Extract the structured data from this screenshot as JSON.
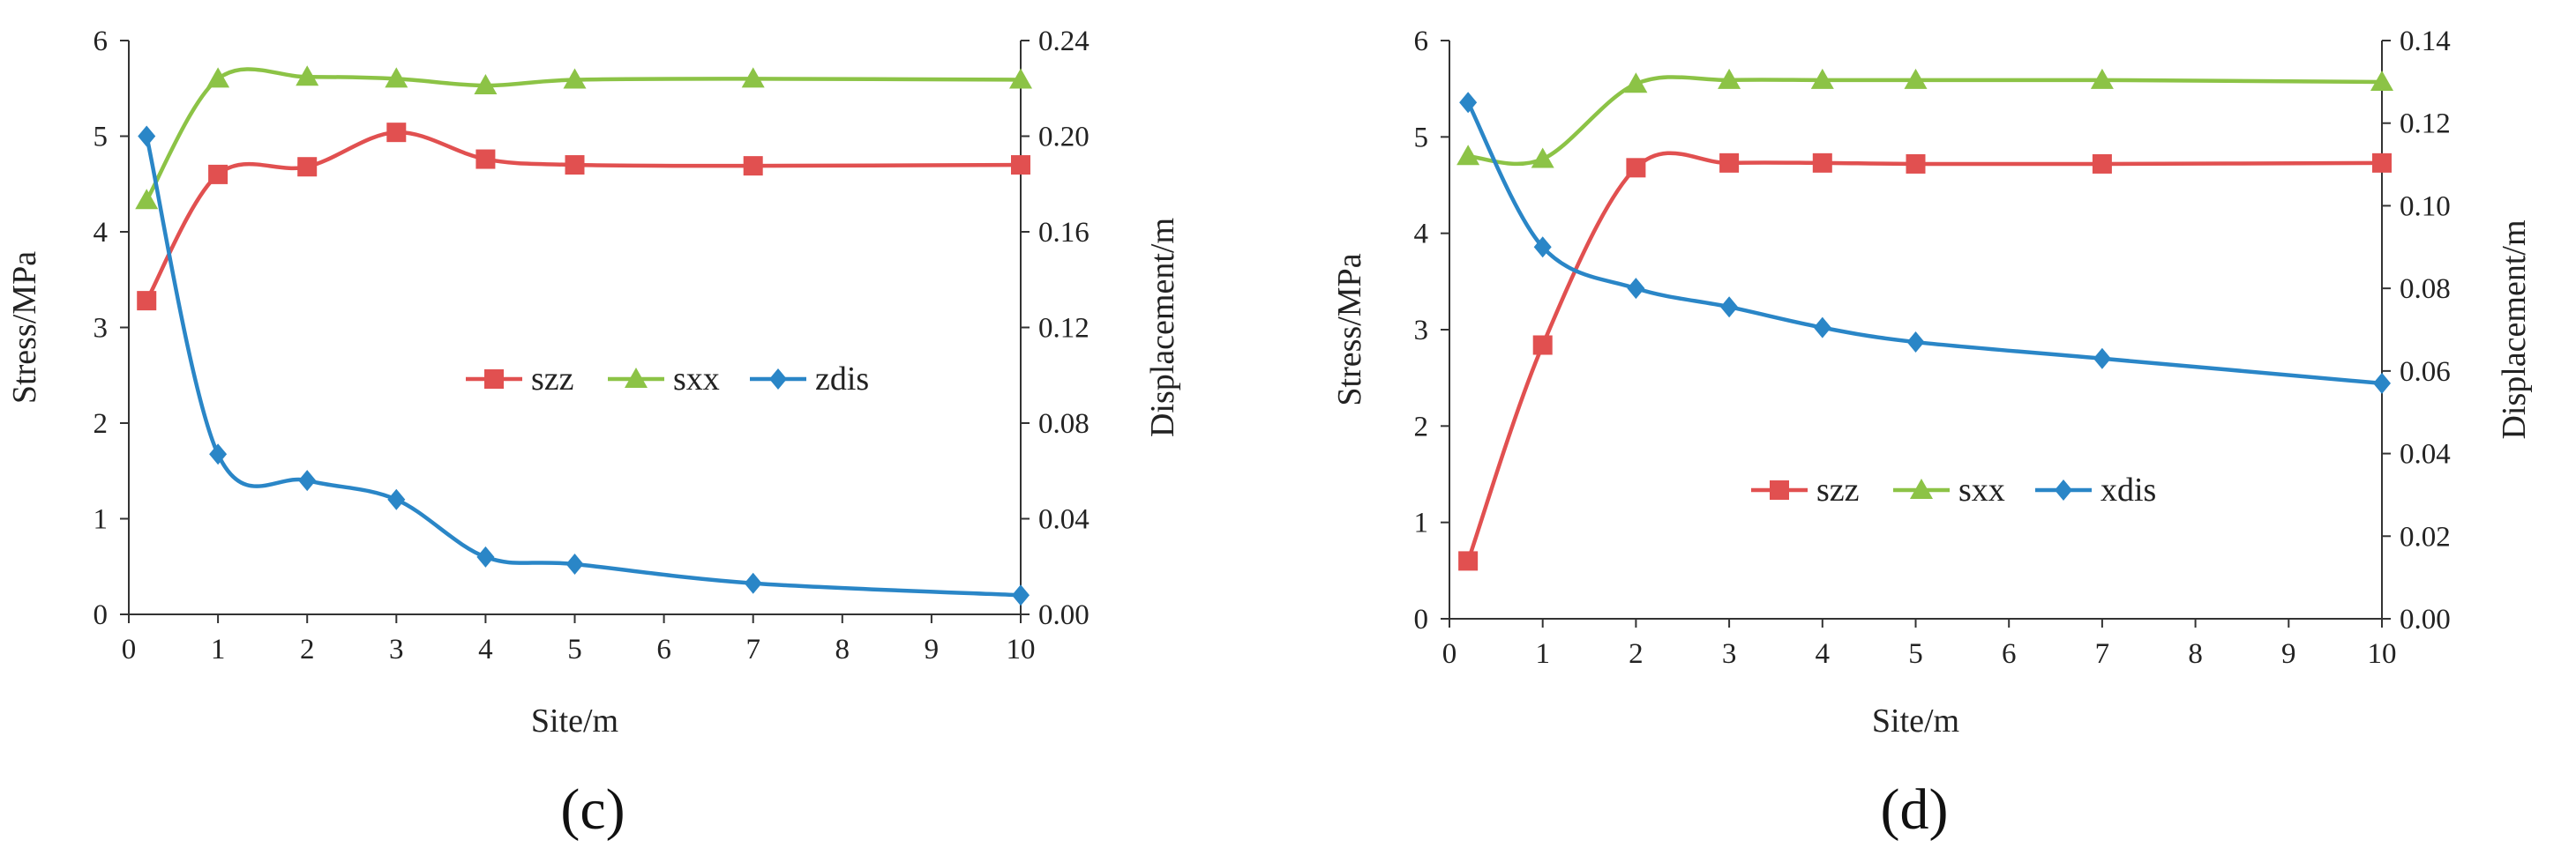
{
  "colors": {
    "szz": "#e15050",
    "sxx": "#8cc346",
    "dis": "#2a86c7"
  },
  "chart_data": [
    {
      "type": "line",
      "panel_label": "(c)",
      "xlabel": "Site/m",
      "ylabel_left": "Stress/MPa",
      "ylabel_right": "Displacement/m",
      "xlim": [
        0,
        10
      ],
      "xticks": [
        0,
        1,
        2,
        3,
        4,
        5,
        6,
        7,
        8,
        9,
        10
      ],
      "ylim_left": [
        0,
        6
      ],
      "yticks_left": [
        0,
        1,
        2,
        3,
        4,
        5,
        6
      ],
      "ylim_right": [
        0,
        0.24
      ],
      "yticks_right": [
        "0.00",
        "0.04",
        "0.08",
        "0.12",
        "0.16",
        "0.20",
        "0.24"
      ],
      "x": [
        0.2,
        1,
        2,
        3,
        4,
        5,
        7,
        10
      ],
      "series": [
        {
          "name": "szz",
          "axis": "left",
          "marker": "square",
          "color": "#e15050",
          "values": [
            3.28,
            4.6,
            4.68,
            5.04,
            4.76,
            4.7,
            4.69,
            4.7
          ]
        },
        {
          "name": "sxx",
          "axis": "left",
          "marker": "triangle",
          "color": "#8cc346",
          "values": [
            4.33,
            5.6,
            5.62,
            5.6,
            5.53,
            5.59,
            5.6,
            5.59
          ]
        },
        {
          "name": "zdis",
          "axis": "right",
          "marker": "diamond",
          "color": "#2a86c7",
          "values": [
            0.2,
            0.067,
            0.056,
            0.048,
            0.024,
            0.021,
            0.013,
            0.008
          ]
        }
      ],
      "legend": [
        "szz",
        "sxx",
        "zdis"
      ],
      "legend_position": "center-right"
    },
    {
      "type": "line",
      "panel_label": "(d)",
      "xlabel": "Site/m",
      "ylabel_left": "Stress/MPa",
      "ylabel_right": "Displacement/m",
      "xlim": [
        0,
        10
      ],
      "xticks": [
        0,
        1,
        2,
        3,
        4,
        5,
        6,
        7,
        8,
        9,
        10
      ],
      "ylim_left": [
        0,
        6
      ],
      "yticks_left": [
        0,
        1,
        2,
        3,
        4,
        5,
        6
      ],
      "ylim_right": [
        0,
        0.14
      ],
      "yticks_right": [
        "0.00",
        "0.02",
        "0.04",
        "0.06",
        "0.08",
        "0.10",
        "0.12",
        "0.14"
      ],
      "x": [
        0.2,
        1,
        2,
        3,
        4,
        5,
        7,
        10
      ],
      "series": [
        {
          "name": "szz",
          "axis": "left",
          "marker": "square",
          "color": "#e15050",
          "values": [
            0.6,
            2.84,
            4.68,
            4.73,
            4.73,
            4.72,
            4.72,
            4.73
          ]
        },
        {
          "name": "sxx",
          "axis": "left",
          "marker": "triangle",
          "color": "#8cc346",
          "values": [
            4.8,
            4.77,
            5.55,
            5.59,
            5.59,
            5.59,
            5.59,
            5.57
          ]
        },
        {
          "name": "xdis",
          "axis": "right",
          "marker": "diamond",
          "color": "#2a86c7",
          "values": [
            0.125,
            0.09,
            0.08,
            0.0755,
            0.0705,
            0.067,
            0.063,
            0.057
          ]
        }
      ],
      "legend": [
        "szz",
        "sxx",
        "xdis"
      ],
      "legend_position": "lower-center"
    }
  ]
}
